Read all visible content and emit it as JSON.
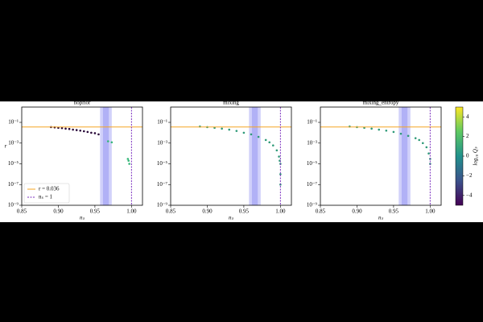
{
  "chart_data": [
    {
      "type": "scatter",
      "title": "noprior",
      "xlabel": "nₛ",
      "ylabel": "r",
      "xlim": [
        0.85,
        1.015
      ],
      "ylim": [
        1e-09,
        3
      ],
      "log_y": true,
      "xticks": [
        0.85,
        {
          "value": 0.9,
          "label": "0.90"
        },
        0.95,
        {
          "value": 1,
          "label": "1.00"
        }
      ],
      "yticks": [
        {
          "value": 0.1,
          "label": "10⁻¹"
        },
        {
          "value": 0.001,
          "label": "10⁻³"
        },
        {
          "value": 1e-05,
          "label": "10⁻⁵"
        },
        {
          "value": 1e-07,
          "label": "10⁻⁷"
        },
        {
          "value": 1e-09,
          "label": "10⁻⁹"
        }
      ],
      "hline": {
        "value": 0.036,
        "label": "r = 0.036",
        "color": "#f5a623"
      },
      "vline": {
        "value": 1,
        "label": "nₛ = 1",
        "color": "#7b2fbf"
      },
      "bands": [
        [
          0.957,
          0.973
        ],
        [
          0.961,
          0.969
        ]
      ],
      "band_color": "#6666ee",
      "legend": "lower left",
      "series": [
        {
          "color": "#2a0a3a",
          "x": [
            0.89,
            0.895,
            0.9,
            0.905,
            0.91,
            0.915,
            0.92,
            0.925,
            0.93,
            0.935,
            0.94,
            0.945,
            0.95,
            0.955
          ],
          "values": [
            0.035,
            0.033,
            0.03,
            0.028,
            0.025,
            0.023,
            0.02,
            0.018,
            0.016,
            0.014,
            0.012,
            0.01,
            0.009,
            0.007
          ]
        },
        {
          "color": "#35b779",
          "x": [
            0.968,
            0.973,
            0.995,
            0.996,
            0.997
          ],
          "values": [
            0.0015,
            0.0012,
            3e-05,
            2e-05,
            1e-05
          ]
        }
      ]
    },
    {
      "type": "scatter",
      "title": "mixing",
      "xlabel": "nₛ",
      "xlim": [
        0.85,
        1.015
      ],
      "ylim": [
        1e-09,
        3
      ],
      "log_y": true,
      "xticks": [
        0.85,
        {
          "value": 0.9,
          "label": "0.90"
        },
        0.95,
        {
          "value": 1,
          "label": "1.00"
        }
      ],
      "yticks": [
        {
          "value": 0.1,
          "label": "10⁻¹"
        },
        {
          "value": 0.001,
          "label": "10⁻³"
        },
        {
          "value": 1e-05,
          "label": "10⁻⁵"
        },
        {
          "value": 1e-07,
          "label": "10⁻⁷"
        },
        {
          "value": 1e-09,
          "label": "10⁻⁹"
        }
      ],
      "hline": {
        "value": 0.036,
        "color": "#f5a623"
      },
      "vline": {
        "value": 1,
        "color": "#7b2fbf"
      },
      "bands": [
        [
          0.957,
          0.973
        ],
        [
          0.961,
          0.969
        ]
      ],
      "band_color": "#6666ee",
      "series": [
        {
          "color": "#2e9a78",
          "x": [
            0.89,
            0.9,
            0.91,
            0.92,
            0.93,
            0.94,
            0.95,
            0.96,
            0.97,
            0.98,
            0.985,
            0.99,
            0.995,
            0.998,
            0.999,
            1,
            1,
            1
          ],
          "values": [
            0.04,
            0.035,
            0.03,
            0.025,
            0.02,
            0.015,
            0.01,
            0.007,
            0.004,
            0.002,
            0.0012,
            0.0006,
            0.0002,
            5e-05,
            2e-05,
            1e-05,
            1e-06,
            1e-07
          ]
        }
      ]
    },
    {
      "type": "scatter",
      "title": "mixing_entropy",
      "xlabel": "nₛ",
      "xlim": [
        0.85,
        1.015
      ],
      "ylim": [
        1e-09,
        3
      ],
      "log_y": true,
      "xticks": [
        0.85,
        {
          "value": 0.9,
          "label": "0.90"
        },
        0.95,
        {
          "value": 1,
          "label": "1.00"
        }
      ],
      "yticks": [
        {
          "value": 0.1,
          "label": "10⁻¹"
        },
        {
          "value": 0.001,
          "label": "10⁻³"
        },
        {
          "value": 1e-05,
          "label": "10⁻⁵"
        },
        {
          "value": 1e-07,
          "label": "10⁻⁷"
        },
        {
          "value": 1e-09,
          "label": "10⁻⁹"
        }
      ],
      "hline": {
        "value": 0.036,
        "color": "#f5a623"
      },
      "vline": {
        "value": 1,
        "color": "#7b2fbf"
      },
      "bands": [
        [
          0.957,
          0.973
        ],
        [
          0.961,
          0.969
        ]
      ],
      "band_color": "#6666ee",
      "series": [
        {
          "color": "#2e9a78",
          "x": [
            0.89,
            0.9,
            0.91,
            0.92,
            0.93,
            0.94,
            0.95,
            0.96,
            0.97,
            0.98,
            0.985,
            0.99,
            0.995,
            0.998,
            1,
            1
          ],
          "values": [
            0.04,
            0.035,
            0.03,
            0.025,
            0.02,
            0.016,
            0.012,
            0.008,
            0.005,
            0.003,
            0.002,
            0.001,
            0.0004,
            0.0001,
            3e-05,
            1e-05
          ]
        }
      ]
    }
  ],
  "colorbar": {
    "label": "log₁₀ Qₛ",
    "lim": [
      -5,
      5
    ],
    "ticks": [
      {
        "value": -4,
        "label": "−4"
      },
      {
        "value": -2,
        "label": "−2"
      },
      0,
      2,
      4
    ]
  }
}
